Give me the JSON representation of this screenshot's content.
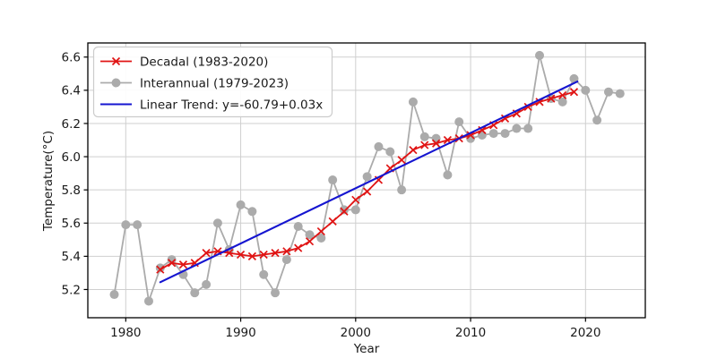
{
  "axes": {
    "xlabel": "Year",
    "ylabel": "Temperature(°C)"
  },
  "legend": {
    "items": [
      {
        "label": "Decadal (1983-2020)",
        "series": "decadal"
      },
      {
        "label": "Interannual (1979-2023)",
        "series": "interannual"
      },
      {
        "label": "Linear Trend: y=-60.79+0.03x",
        "series": "trend"
      }
    ]
  },
  "chart_data": {
    "type": "line",
    "title": "",
    "xlabel": "Year",
    "ylabel": "Temperature(°C)",
    "xlim": [
      1976.7,
      2025.2
    ],
    "ylim": [
      5.03,
      6.685
    ],
    "x_ticks": [
      1980,
      1990,
      2000,
      2010,
      2020
    ],
    "y_ticks": [
      5.2,
      5.4,
      5.6,
      5.8,
      6.0,
      6.2,
      6.4,
      6.6
    ],
    "grid": true,
    "legend_position": "upper left",
    "colors": {
      "decadal": "#e01414",
      "interannual": "#ababab",
      "trend": "#1515d0",
      "grid": "#cfcfcf",
      "spine": "#000000",
      "text": "#1a1a1a"
    },
    "series": [
      {
        "id": "interannual",
        "name": "Interannual (1979-2023)",
        "color": "#ababab",
        "marker": "circle",
        "marker_size": 5,
        "line_width": 1.8,
        "year_start": 1979,
        "year_end": 2023,
        "values": [
          5.17,
          5.59,
          5.59,
          5.13,
          5.33,
          5.38,
          5.29,
          5.18,
          5.23,
          5.6,
          5.44,
          5.71,
          5.67,
          5.29,
          5.18,
          5.38,
          5.58,
          5.53,
          5.51,
          5.86,
          5.68,
          5.68,
          5.88,
          6.06,
          6.03,
          5.8,
          6.33,
          6.12,
          6.11,
          5.89,
          6.21,
          6.11,
          6.13,
          6.14,
          6.14,
          6.17,
          6.17,
          6.61,
          6.35,
          6.33,
          6.47,
          6.4,
          6.22,
          6.39,
          6.38
        ]
      },
      {
        "id": "decadal",
        "name": "Decadal (1983-2020)",
        "color": "#e01414",
        "marker": "x",
        "marker_size": 4,
        "line_width": 1.8,
        "year_start": 1983,
        "year_end": 2019,
        "values": [
          5.32,
          5.36,
          5.35,
          5.36,
          5.42,
          5.43,
          5.42,
          5.41,
          5.4,
          5.41,
          5.42,
          5.43,
          5.45,
          5.49,
          5.55,
          5.61,
          5.67,
          5.74,
          5.79,
          5.86,
          5.93,
          5.98,
          6.04,
          6.07,
          6.08,
          6.1,
          6.11,
          6.13,
          6.16,
          6.19,
          6.23,
          6.26,
          6.3,
          6.33,
          6.35,
          6.37,
          6.39
        ]
      },
      {
        "id": "trend",
        "name": "Linear Trend: y=-60.79+0.03x",
        "color": "#1515d0",
        "marker": "none",
        "line_width": 2.1,
        "trend": {
          "intercept": -60.79,
          "slope": 0.0333,
          "x_start": 1983.0,
          "x_end": 2019.3
        }
      }
    ]
  }
}
